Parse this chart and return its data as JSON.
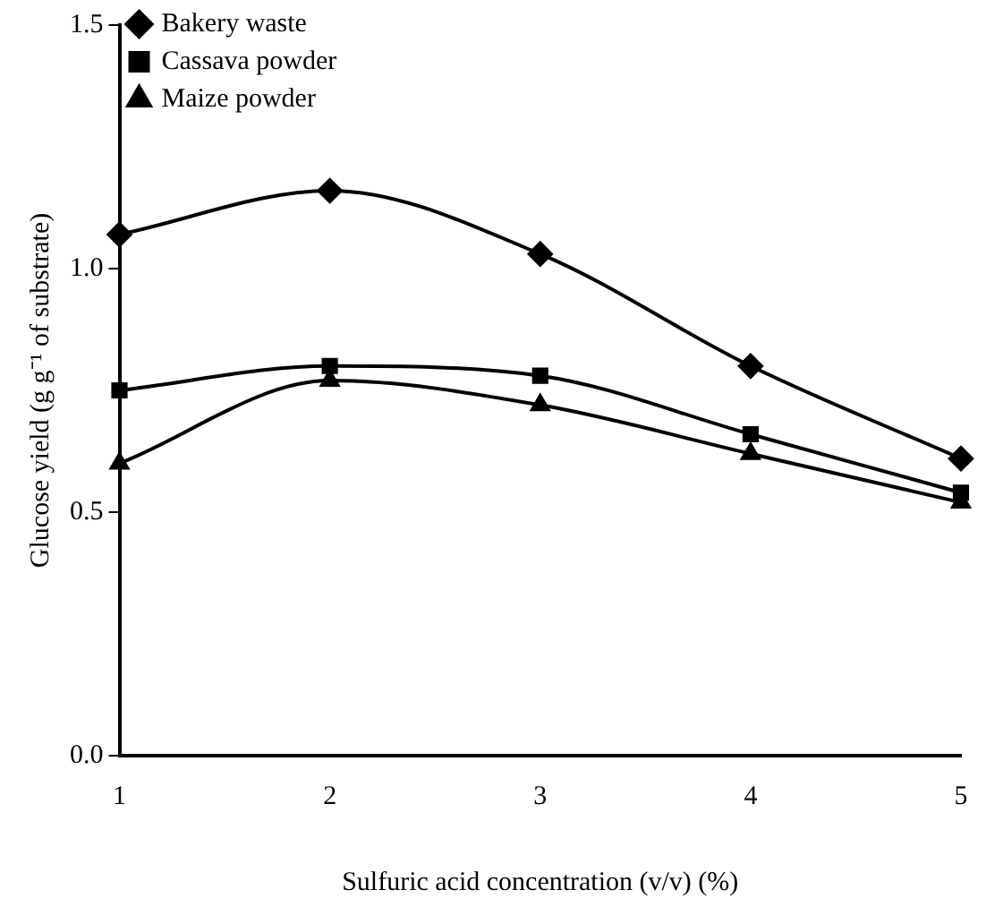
{
  "chart_data": {
    "type": "line",
    "xlabel": "Sulfuric acid concentration (v/v) (%)",
    "ylabel": "Glucose yield (g g⁻¹ of substrate)",
    "x": [
      1,
      2,
      3,
      4,
      5
    ],
    "xlim": [
      1,
      5
    ],
    "xticks": [
      1,
      2,
      3,
      4,
      5
    ],
    "ylim": [
      0,
      1.5
    ],
    "yticks": [
      {
        "value": 0,
        "label": "0.0"
      },
      {
        "value": 0.5,
        "label": "0.5"
      },
      {
        "value": 1,
        "label": "1.0"
      },
      {
        "value": 1.5,
        "label": "1.5"
      }
    ],
    "grid": false,
    "legend": "top left",
    "series": [
      {
        "name": "Bakery waste",
        "color": "#000000",
        "marker": "diamond",
        "values": [
          1.07,
          1.16,
          1.03,
          0.8,
          0.61
        ]
      },
      {
        "name": "Cassava powder",
        "color": "#000000",
        "marker": "square",
        "values": [
          0.75,
          0.8,
          0.78,
          0.66,
          0.54
        ]
      },
      {
        "name": "Maize powder",
        "color": "#000000",
        "marker": "triangle",
        "values": [
          0.6,
          0.77,
          0.72,
          0.62,
          0.52
        ]
      }
    ]
  }
}
